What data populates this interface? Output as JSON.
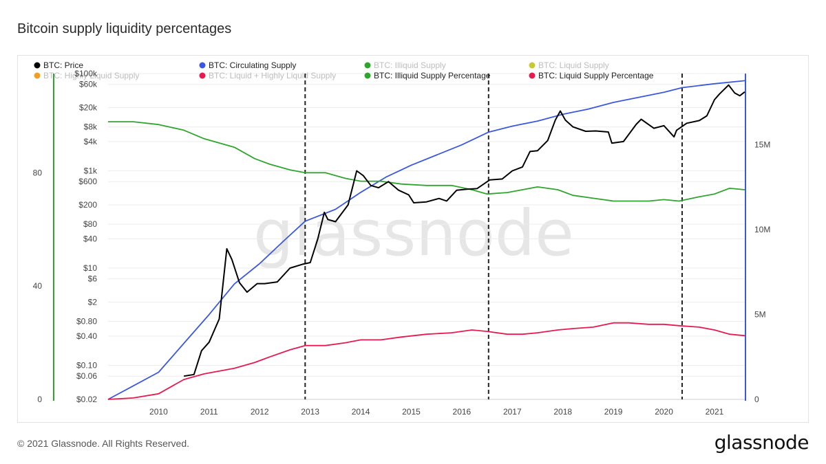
{
  "title": "Bitcoin supply liquidity percentages",
  "footer": "© 2021 Glassnode. All Rights Reserved.",
  "brand": "glassnode",
  "watermark": "glassnode",
  "colors": {
    "price": "#000000",
    "circulating": "#3b57e0",
    "illiquid": "#2ea52c",
    "liquid": "#e8194f",
    "marker_orange": "#f0a020",
    "marker_olive": "#c8c830",
    "left_axis_bar": "#2ea52c",
    "right_axis_bar": "#3b57e0"
  },
  "chart_data": {
    "type": "line",
    "title": "Bitcoin supply liquidity percentages",
    "legend": [
      {
        "name": "BTC: Price",
        "color": "#000000",
        "faded": false
      },
      {
        "name": "BTC: Circulating Supply",
        "color": "#3b57e0",
        "faded": false
      },
      {
        "name": "BTC: Illiquid Supply",
        "color": "#2ea52c",
        "faded": true
      },
      {
        "name": "BTC: Liquid Supply",
        "color": "#c8c830",
        "faded": true
      },
      {
        "name": "BTC: Highly Liquid Supply",
        "color": "#f0a020",
        "faded": true
      },
      {
        "name": "BTC: Liquid + Highly Liquid Supply",
        "color": "#e8194f",
        "faded": true
      },
      {
        "name": "BTC: Illiquid Supply Percentage",
        "color": "#2ea52c",
        "faded": false
      },
      {
        "name": "BTC: Liquid Supply Percentage",
        "color": "#e8194f",
        "faded": false
      }
    ],
    "legend_position": "top",
    "x_ticks": [
      "2010",
      "2011",
      "2012",
      "2013",
      "2014",
      "2015",
      "2016",
      "2017",
      "2018",
      "2019",
      "2020",
      "2021"
    ],
    "xlim": [
      2009.0,
      2021.6
    ],
    "left_percent_axis": {
      "ticks": [
        0,
        40,
        80
      ],
      "range": [
        0,
        115
      ]
    },
    "price_axis": {
      "scale": "log",
      "ticks": [
        "$0.02",
        "$0.06",
        "$0.10",
        "$0.40",
        "$0.80",
        "$2",
        "$6",
        "$10",
        "$40",
        "$80",
        "$200",
        "$600",
        "$1k",
        "$4k",
        "$8k",
        "$20k",
        "$60k",
        "$100k"
      ],
      "tick_values": [
        0.02,
        0.06,
        0.1,
        0.4,
        0.8,
        2,
        6,
        10,
        40,
        80,
        200,
        600,
        1000,
        4000,
        8000,
        20000,
        60000,
        100000
      ],
      "range": [
        0.02,
        100000
      ]
    },
    "supply_axis": {
      "ticks": [
        "0",
        "5M",
        "10M",
        "15M"
      ],
      "tick_values": [
        0,
        5000000,
        10000000,
        15000000
      ],
      "range": [
        0,
        19200000
      ]
    },
    "halvings": [
      2012.9,
      2016.53,
      2020.36
    ],
    "series": [
      {
        "name": "BTC: Price",
        "axis": "price",
        "x": [
          2010.5,
          2010.7,
          2010.85,
          2011.0,
          2011.2,
          2011.35,
          2011.45,
          2011.6,
          2011.75,
          2011.95,
          2012.1,
          2012.35,
          2012.6,
          2012.85,
          2013.0,
          2013.15,
          2013.28,
          2013.35,
          2013.5,
          2013.75,
          2013.92,
          2014.05,
          2014.2,
          2014.35,
          2014.55,
          2014.75,
          2014.95,
          2015.05,
          2015.3,
          2015.55,
          2015.7,
          2015.9,
          2016.1,
          2016.3,
          2016.45,
          2016.55,
          2016.8,
          2017.0,
          2017.2,
          2017.35,
          2017.5,
          2017.7,
          2017.85,
          2017.95,
          2018.05,
          2018.2,
          2018.45,
          2018.65,
          2018.9,
          2018.97,
          2019.2,
          2019.45,
          2019.55,
          2019.8,
          2020.0,
          2020.2,
          2020.25,
          2020.45,
          2020.7,
          2020.85,
          2021.0,
          2021.1,
          2021.28,
          2021.4,
          2021.5,
          2021.6
        ],
        "values": [
          0.06,
          0.065,
          0.2,
          0.3,
          0.9,
          25,
          15,
          5,
          3.2,
          4.8,
          4.8,
          5.2,
          10,
          12,
          13,
          40,
          140,
          100,
          90,
          200,
          1000,
          800,
          500,
          450,
          600,
          400,
          320,
          220,
          230,
          270,
          240,
          400,
          420,
          430,
          550,
          650,
          680,
          1000,
          1200,
          2500,
          2600,
          4200,
          11000,
          17000,
          11000,
          8000,
          6500,
          6600,
          6300,
          3700,
          4000,
          9000,
          11500,
          7500,
          8500,
          5000,
          6800,
          9500,
          10800,
          13500,
          29000,
          38000,
          58000,
          40000,
          35000,
          42000
        ]
      },
      {
        "name": "BTC: Circulating Supply",
        "axis": "supply",
        "x": [
          2009.0,
          2009.5,
          2010.0,
          2010.5,
          2011.0,
          2011.5,
          2012.0,
          2012.5,
          2012.9,
          2013.5,
          2014.0,
          2014.5,
          2015.0,
          2015.5,
          2016.0,
          2016.53,
          2017.0,
          2017.5,
          2018.0,
          2018.5,
          2019.0,
          2019.5,
          2020.0,
          2020.36,
          2021.0,
          2021.6
        ],
        "values": [
          0,
          800000,
          1600000,
          3300000,
          5000000,
          6800000,
          8000000,
          9400000,
          10500000,
          11200000,
          12200000,
          13100000,
          13800000,
          14400000,
          15000000,
          15750000,
          16100000,
          16400000,
          16800000,
          17100000,
          17500000,
          17800000,
          18100000,
          18370000,
          18600000,
          18780000
        ]
      },
      {
        "name": "BTC: Illiquid Supply Percentage",
        "axis": "percent",
        "x": [
          2009.0,
          2009.5,
          2010.0,
          2010.5,
          2010.9,
          2011.5,
          2011.9,
          2012.2,
          2012.6,
          2012.9,
          2013.3,
          2013.7,
          2014.0,
          2014.4,
          2014.8,
          2015.3,
          2015.8,
          2016.2,
          2016.5,
          2016.9,
          2017.2,
          2017.5,
          2017.9,
          2018.2,
          2018.6,
          2019.0,
          2019.3,
          2019.7,
          2020.0,
          2020.3,
          2020.7,
          2021.0,
          2021.3,
          2021.6
        ],
        "values": [
          98,
          98,
          97,
          95,
          92,
          89,
          85,
          83,
          81,
          80,
          80,
          78,
          77,
          77,
          76,
          75.5,
          75.5,
          74,
          72.5,
          73,
          74,
          75,
          74,
          72,
          71,
          70,
          70,
          70,
          70.5,
          70,
          71.5,
          72.5,
          74.5,
          74
        ]
      },
      {
        "name": "BTC: Liquid Supply Percentage",
        "axis": "percent",
        "x": [
          2009.0,
          2009.5,
          2010.0,
          2010.5,
          2010.9,
          2011.5,
          2011.9,
          2012.2,
          2012.6,
          2012.9,
          2013.3,
          2013.7,
          2014.0,
          2014.4,
          2014.8,
          2015.3,
          2015.8,
          2016.2,
          2016.5,
          2016.9,
          2017.2,
          2017.5,
          2017.9,
          2018.2,
          2018.6,
          2019.0,
          2019.3,
          2019.7,
          2020.0,
          2020.3,
          2020.7,
          2021.0,
          2021.3,
          2021.6
        ],
        "values": [
          0,
          0.5,
          2,
          7,
          9,
          11,
          13,
          15,
          17.5,
          19,
          19,
          20,
          21,
          21,
          22,
          23,
          23.5,
          24.5,
          24,
          23,
          23,
          23.5,
          24.5,
          25,
          25.5,
          27,
          27,
          26.5,
          26.5,
          26,
          25.5,
          24.5,
          23,
          22.5
        ]
      }
    ]
  }
}
